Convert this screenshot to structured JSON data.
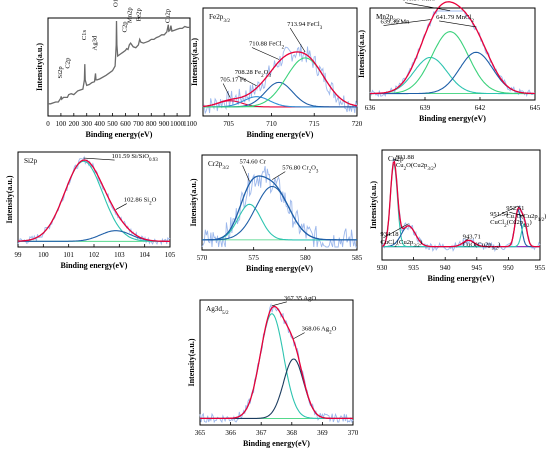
{
  "chart_data": [
    {
      "type": "line",
      "panel": "survey",
      "xlabel": "Binding energy(eV)",
      "ylabel": "Intensity(a.u.)",
      "xlim": [
        0,
        1100
      ],
      "xticks": [
        0,
        100,
        200,
        300,
        400,
        500,
        600,
        700,
        800,
        900,
        1000,
        1100
      ],
      "ylim": [
        0,
        100
      ],
      "series": [
        {
          "color": "#6b6b6b",
          "x": [
            0,
            20,
            40,
            60,
            80,
            98,
            102,
            106,
            120,
            150,
            160,
            180,
            200,
            230,
            250,
            270,
            282,
            285,
            288,
            300,
            320,
            340,
            360,
            368,
            372,
            380,
            400,
            450,
            500,
            520,
            528,
            531,
            534,
            540,
            560,
            580,
            600,
            610,
            620,
            630,
            640,
            660,
            680,
            700,
            710,
            720,
            740,
            760,
            780,
            800,
            820,
            840,
            860,
            880,
            900,
            920,
            932,
            936,
            945,
            952,
            960,
            980,
            1000,
            1020,
            1040,
            1060,
            1080,
            1100
          ],
          "y": [
            10,
            10,
            11,
            12,
            12,
            16,
            18,
            15,
            17,
            17,
            20,
            21,
            20,
            24,
            25,
            26,
            36,
            53,
            36,
            30,
            31,
            33,
            34,
            43,
            36,
            36,
            37,
            41,
            46,
            51,
            74,
            100,
            74,
            62,
            64,
            66,
            68,
            70,
            69,
            74,
            76,
            72,
            71,
            74,
            80,
            77,
            76,
            77,
            78,
            80,
            80,
            82,
            83,
            85,
            85,
            88,
            96,
            89,
            90,
            95,
            89,
            90,
            91,
            92,
            92,
            94,
            93,
            93
          ]
        }
      ],
      "annotations": [
        {
          "text": "Si2p",
          "x": 102
        },
        {
          "text": "C2p",
          "x": 160
        },
        {
          "text": "C1s",
          "x": 285
        },
        {
          "text": "Ag3d",
          "x": 368
        },
        {
          "text": "O1s",
          "x": 531
        },
        {
          "text": "C2p",
          "x": 600
        },
        {
          "text": "Mn2p",
          "x": 640
        },
        {
          "text": "Fe2p",
          "x": 710
        },
        {
          "text": "Cu2p",
          "x": 935
        }
      ]
    },
    {
      "type": "line",
      "panel": "Fe2p",
      "region_label": "Fe2p3/2",
      "xlabel": "Binding energy(eV)",
      "ylabel": "Intensity(a.u.)",
      "xlim": [
        702,
        720
      ],
      "xticks": [
        705,
        710,
        715,
        720
      ],
      "ylim": [
        0,
        100
      ],
      "baseline": 6,
      "components": [
        {
          "name": "705.17 Fe",
          "center": 705.17,
          "height": 6,
          "width": 1.4,
          "color": "#e8003a"
        },
        {
          "name": "708.28 Fe2O3",
          "center": 708.28,
          "height": 10,
          "width": 1.5,
          "color": "#2d8fd8"
        },
        {
          "name": "710.88 FeCl2",
          "center": 710.88,
          "height": 24,
          "width": 1.6,
          "color": "#1f5fa8"
        },
        {
          "name": "713.94 FeCl3",
          "center": 713.94,
          "height": 48,
          "width": 2.2,
          "color": "#3cd27c"
        }
      ],
      "envelope_color": "#e8003a",
      "raw_color": "#9db8ec",
      "labels": [
        {
          "main": "705.17 Fe",
          "sub": ""
        },
        {
          "main": "708.28 Fe",
          "sub": "2",
          "tail": "O",
          "sub2": "3"
        },
        {
          "main": "710.88 FeCl",
          "sub": "2"
        },
        {
          "main": "713.94  FeCl",
          "sub": "3"
        }
      ]
    },
    {
      "type": "line",
      "panel": "Mn2p",
      "region_label": "Mn2p3/2",
      "xlabel": "Binding energy(eV)",
      "ylabel": "Intensity(a.u.)",
      "xlim": [
        636,
        645
      ],
      "xticks": [
        636,
        639,
        642,
        645
      ],
      "ylim": [
        0,
        100
      ],
      "baseline": 4,
      "components": [
        {
          "name": "639.30 Mn",
          "center": 639.3,
          "height": 42,
          "width": 0.9,
          "color": "#2ec4b0"
        },
        {
          "name": "640.37 MnO",
          "center": 640.37,
          "height": 72,
          "width": 1.0,
          "color": "#3cd27c"
        },
        {
          "name": "641.79 MnCl2",
          "center": 641.79,
          "height": 48,
          "width": 0.9,
          "color": "#1f5fa8"
        }
      ],
      "envelope_color": "#e8003a",
      "raw_color": "#9db8ec",
      "labels": [
        {
          "main": "639.30 Mn",
          "sub": ""
        },
        {
          "main": "640.37 MnO",
          "sub": ""
        },
        {
          "main": "641.79 MnCl",
          "sub": "2"
        }
      ]
    },
    {
      "type": "line",
      "panel": "Si2p",
      "region_label": "Si2p",
      "xlabel": "Binding energy(eV)",
      "ylabel": "Intensity(a.u.)",
      "xlim": [
        99,
        105
      ],
      "xticks": [
        99,
        100,
        101,
        102,
        103,
        104,
        105
      ],
      "ylim": [
        0,
        100
      ],
      "baseline": 3,
      "components": [
        {
          "name": "101.59 Si/SiO0.93",
          "center": 101.59,
          "height": 90,
          "width": 0.75,
          "color": "#2ec4b0"
        },
        {
          "name": "102.86 Si2O",
          "center": 102.86,
          "height": 12,
          "width": 0.6,
          "color": "#1f5fa8"
        }
      ],
      "envelope_color": "#e8003a",
      "raw_color": "#9db8ec",
      "labels": [
        {
          "main": "101.59 Si/SiO",
          "sub": "0.93"
        },
        {
          "main": "102.86 Si",
          "sub": "2",
          "tail": "O"
        }
      ]
    },
    {
      "type": "line",
      "panel": "Cr2p",
      "region_label": "Cr2p3/2",
      "xlabel": "Binding energy(eV)",
      "ylabel": "Intensity(a.u.)",
      "xlim": [
        570,
        585
      ],
      "xticks": [
        570,
        575,
        580,
        585
      ],
      "ylim": [
        0,
        100
      ],
      "baseline": 8,
      "components": [
        {
          "name": "574.60 Cr",
          "center": 574.6,
          "height": 40,
          "width": 1.1,
          "color": "#2ec4b0"
        },
        {
          "name": "576.80 Cr2O3",
          "center": 576.8,
          "height": 60,
          "width": 1.6,
          "color": "#1f5fa8"
        }
      ],
      "envelope_color": "#1f5fa8",
      "raw_color": "#9db8ec",
      "labels": [
        {
          "main": "574.60 Cr",
          "sub": ""
        },
        {
          "main": "576.80 Cr",
          "sub": "2",
          "tail": "O",
          "sub2": "3"
        }
      ]
    },
    {
      "type": "line",
      "panel": "Cu2p",
      "region_label": "Cu2p",
      "xlabel": "Binding energy(eV)",
      "ylabel": "Intensity(a.u.)",
      "xlim": [
        930,
        955
      ],
      "xticks": [
        930,
        935,
        940,
        945,
        950,
        955
      ],
      "ylim": [
        0,
        100
      ],
      "baseline": 10,
      "components": [
        {
          "name": "931.88 Cu2O(Cu2p3/2)",
          "center": 931.88,
          "height": 80,
          "width": 0.55,
          "color": "#2ec4b0"
        },
        {
          "name": "934.18 CuCl2(Cu2p3/2)",
          "center": 934.18,
          "height": 20,
          "width": 1.1,
          "color": "#1f5fa8"
        },
        {
          "name": "943.71 CuO(Cu2p3/2)",
          "center": 943.71,
          "height": 6,
          "width": 0.9,
          "color": "#9b2fb8"
        },
        {
          "name": "951.54 CuCl2(Cu2p1/2)",
          "center": 951.54,
          "height": 35,
          "width": 0.5,
          "color": "#1f5fa8"
        },
        {
          "name": "952.51 Cu2O(Cu2p1/2)",
          "center": 952.51,
          "height": 22,
          "width": 0.45,
          "color": "#2ec4b0"
        }
      ],
      "envelope_color": "#e8003a",
      "raw_color": "#9db8ec",
      "labels": [
        {
          "main": "931.88",
          "line2": "Cu",
          "sub": "2",
          "tail": "O(Cu2p",
          "sub2": "3/2",
          "end": ")"
        },
        {
          "main": "934.18",
          "line2": "CuCl",
          "sub": "2",
          "tail": "(Cu2p",
          "sub2": "3/2",
          "end": ")"
        },
        {
          "main": "943.71",
          "line2": "CuO(Cu2p",
          "sub": "3/2",
          "tail": ")"
        },
        {
          "main": "951.54",
          "line2": "CuCl",
          "sub": "2",
          "tail": "(Cu2p",
          "sub2": "1/2",
          "end": ")"
        },
        {
          "main": "952.51",
          "line2": "Cu",
          "sub": "2",
          "tail": "O(Cu2p",
          "sub2": "1/2",
          "end": ")"
        }
      ]
    },
    {
      "type": "line",
      "panel": "Ag3d",
      "region_label": "Ag3d5/2",
      "xlabel": "Binding energy(eV)",
      "ylabel": "Intensity(a.u.)",
      "xlim": [
        365,
        370
      ],
      "xticks": [
        365,
        366,
        367,
        368,
        369,
        370
      ],
      "ylim": [
        0,
        100
      ],
      "baseline": 3,
      "components": [
        {
          "name": "367.35 AgO",
          "center": 367.35,
          "height": 88,
          "width": 0.38,
          "color": "#2ec4b0"
        },
        {
          "name": "368.06 Ag2O",
          "center": 368.06,
          "height": 50,
          "width": 0.33,
          "color": "#1b3b5e"
        }
      ],
      "envelope_color": "#e8003a",
      "raw_color": "#9db8ec",
      "labels": [
        {
          "main": "367.35 AgO",
          "sub": ""
        },
        {
          "main": "368.06 Ag",
          "sub": "2",
          "tail": "O"
        }
      ]
    }
  ]
}
